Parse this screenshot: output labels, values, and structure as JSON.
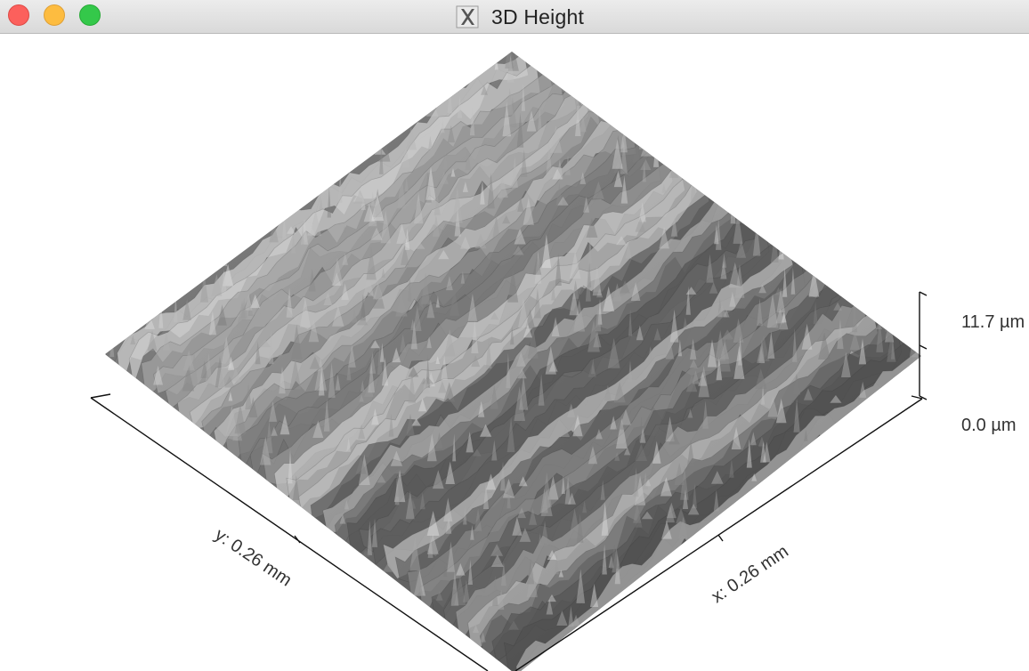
{
  "window": {
    "title": "3D Height",
    "buttons": {
      "close": "close",
      "minimize": "minimize",
      "zoom": "zoom"
    },
    "app_icon": "x11-app-icon"
  },
  "plot": {
    "type": "3d-surface",
    "colormap": "grayscale",
    "z_axis": {
      "max_label": "11.7 µm",
      "min_label": "0.0 µm"
    },
    "x_axis": {
      "label": "x: 0.26 mm"
    },
    "y_axis": {
      "label": "y: 0.26 mm"
    }
  }
}
